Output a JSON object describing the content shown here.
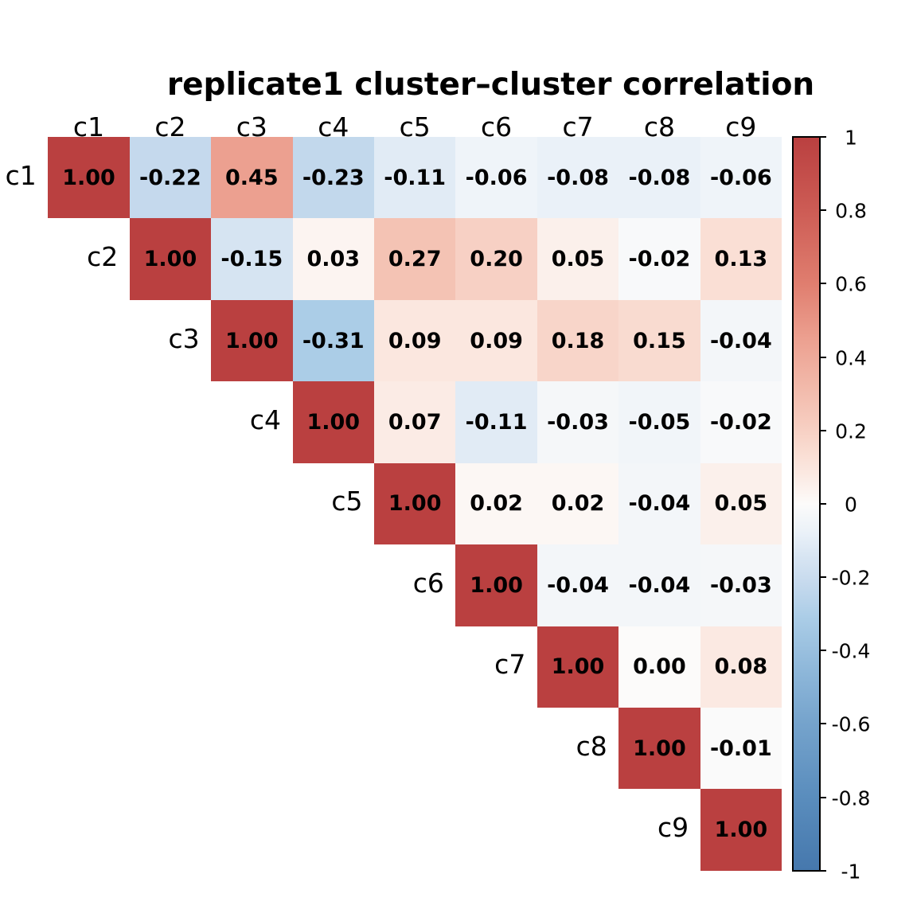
{
  "title": "replicate1 cluster–cluster correlation",
  "colors": {
    "background": "#ffffff",
    "text": "#000000",
    "colorbar_outline": "#000000"
  },
  "chart_data": {
    "type": "heatmap",
    "shape": "upper-triangular",
    "categories": [
      "c1",
      "c2",
      "c3",
      "c4",
      "c5",
      "c6",
      "c7",
      "c8",
      "c9"
    ],
    "matrix": [
      [
        1.0,
        -0.22,
        0.45,
        -0.23,
        -0.11,
        -0.06,
        -0.08,
        -0.08,
        -0.06
      ],
      [
        null,
        1.0,
        -0.15,
        0.03,
        0.27,
        0.2,
        0.05,
        -0.02,
        0.13
      ],
      [
        null,
        null,
        1.0,
        -0.31,
        0.09,
        0.09,
        0.18,
        0.15,
        -0.04
      ],
      [
        null,
        null,
        null,
        1.0,
        0.07,
        -0.11,
        -0.03,
        -0.05,
        -0.02
      ],
      [
        null,
        null,
        null,
        null,
        1.0,
        0.02,
        0.02,
        -0.04,
        0.05
      ],
      [
        null,
        null,
        null,
        null,
        null,
        1.0,
        -0.04,
        -0.04,
        -0.03
      ],
      [
        null,
        null,
        null,
        null,
        null,
        null,
        1.0,
        0.0,
        0.08
      ],
      [
        null,
        null,
        null,
        null,
        null,
        null,
        null,
        1.0,
        -0.01
      ],
      [
        null,
        null,
        null,
        null,
        null,
        null,
        null,
        null,
        1.0
      ]
    ],
    "annotation_decimals": 2,
    "colorbar": {
      "min": -1,
      "max": 1,
      "tick_values": [
        1,
        0.8,
        0.6,
        0.4,
        0.2,
        0,
        -0.2,
        -0.4,
        -0.6,
        -0.8,
        -1
      ],
      "tick_labels": [
        "1",
        "0.8",
        "0.6",
        "0.4",
        "0.2",
        "0",
        "-0.2",
        "-0.4",
        "-0.6",
        "-0.8",
        "-1"
      ]
    },
    "colormap_stops": [
      {
        "v": -1.0,
        "color": "#4678ad"
      },
      {
        "v": -0.8,
        "color": "#5a8dbd"
      },
      {
        "v": -0.6,
        "color": "#75a3cc"
      },
      {
        "v": -0.45,
        "color": "#8fb8da"
      },
      {
        "v": -0.31,
        "color": "#abcde7"
      },
      {
        "v": -0.22,
        "color": "#c5d9ed"
      },
      {
        "v": -0.15,
        "color": "#d6e4f2"
      },
      {
        "v": -0.08,
        "color": "#eaf1f8"
      },
      {
        "v": 0.0,
        "color": "#fcfbfa"
      },
      {
        "v": 0.08,
        "color": "#fbe9e2"
      },
      {
        "v": 0.15,
        "color": "#f9dbd0"
      },
      {
        "v": 0.22,
        "color": "#f6ccbf"
      },
      {
        "v": 0.31,
        "color": "#f2bbac"
      },
      {
        "v": 0.45,
        "color": "#eca090"
      },
      {
        "v": 0.6,
        "color": "#e07e6f"
      },
      {
        "v": 0.8,
        "color": "#cd5c55"
      },
      {
        "v": 1.0,
        "color": "#ba4040"
      }
    ],
    "grid": false,
    "legend": false
  }
}
